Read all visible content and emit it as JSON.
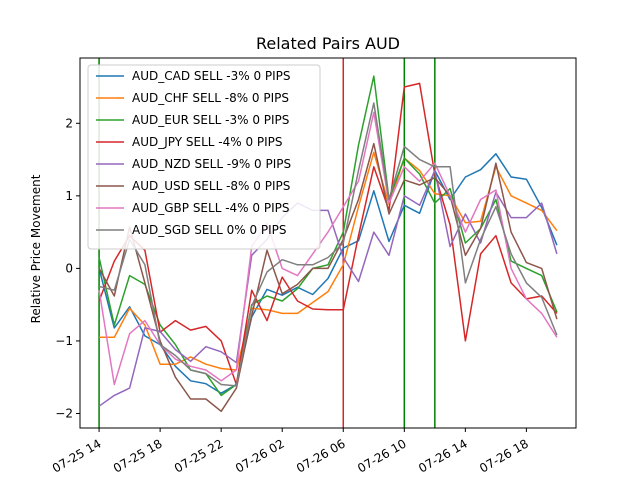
{
  "chart_data": {
    "type": "line",
    "title": "Related Pairs AUD",
    "xlabel": "",
    "ylabel": "Relative Price Movement",
    "x": [
      "2023-07-25 14:00",
      "2023-07-25 15:00",
      "2023-07-25 16:00",
      "2023-07-25 17:00",
      "2023-07-25 18:00",
      "2023-07-25 19:00",
      "2023-07-25 20:00",
      "2023-07-25 21:00",
      "2023-07-25 22:00",
      "2023-07-25 23:00",
      "2023-07-26 00:00",
      "2023-07-26 01:00",
      "2023-07-26 02:00",
      "2023-07-26 03:00",
      "2023-07-26 04:00",
      "2023-07-26 05:00",
      "2023-07-26 06:00",
      "2023-07-26 07:00",
      "2023-07-26 08:00",
      "2023-07-26 09:00",
      "2023-07-26 10:00",
      "2023-07-26 11:00",
      "2023-07-26 12:00",
      "2023-07-26 13:00",
      "2023-07-26 14:00",
      "2023-07-26 15:00",
      "2023-07-26 16:00",
      "2023-07-26 17:00",
      "2023-07-26 18:00",
      "2023-07-26 19:00",
      "2023-07-26 20:00"
    ],
    "xlim": [
      "2023-07-25 12:45",
      "2023-07-26 21:15"
    ],
    "ylim": [
      -2.2,
      2.9
    ],
    "xticks": [
      {
        "label": "07-25 14",
        "t": "2023-07-25 14:00"
      },
      {
        "label": "07-25 18",
        "t": "2023-07-25 18:00"
      },
      {
        "label": "07-25 22",
        "t": "2023-07-25 22:00"
      },
      {
        "label": "07-26 02",
        "t": "2023-07-26 02:00"
      },
      {
        "label": "07-26 06",
        "t": "2023-07-26 06:00"
      },
      {
        "label": "07-26 10",
        "t": "2023-07-26 10:00"
      },
      {
        "label": "07-26 14",
        "t": "2023-07-26 14:00"
      },
      {
        "label": "07-26 18",
        "t": "2023-07-26 18:00"
      }
    ],
    "yticks": [
      -2,
      -1,
      0,
      1,
      2
    ],
    "grid": false,
    "legend_position": "top-left",
    "vlines": [
      {
        "t": "2023-07-25 14:00",
        "color": "#008000"
      },
      {
        "t": "2023-07-26 06:00",
        "color": "#d62728"
      },
      {
        "t": "2023-07-26 10:00",
        "color": "#008000"
      },
      {
        "t": "2023-07-26 12:00",
        "color": "#008000"
      }
    ],
    "series": [
      {
        "name": "AUD_CAD SELL -3% 0 PIPS",
        "color": "#1f77b4",
        "values": [
          0.0,
          -0.82,
          -0.53,
          -0.93,
          -1.05,
          -1.35,
          -1.55,
          -1.59,
          -1.72,
          -1.6,
          -0.67,
          -0.29,
          -0.37,
          -0.26,
          -0.36,
          -0.14,
          0.28,
          0.38,
          1.07,
          0.37,
          0.87,
          0.76,
          1.35,
          0.95,
          1.26,
          1.36,
          1.58,
          1.26,
          1.23,
          0.84,
          0.32
        ]
      },
      {
        "name": "AUD_CHF SELL -8% 0 PIPS",
        "color": "#ff7f0e",
        "values": [
          -0.95,
          -0.95,
          -0.55,
          -0.78,
          -1.32,
          -1.32,
          -1.22,
          -1.32,
          -1.38,
          -1.4,
          -0.55,
          -0.57,
          -0.62,
          -0.62,
          -0.47,
          -0.32,
          0.05,
          0.85,
          1.6,
          0.88,
          1.52,
          1.35,
          1.03,
          1.0,
          0.63,
          0.65,
          1.4,
          1.0,
          0.9,
          0.8,
          0.52
        ]
      },
      {
        "name": "AUD_EUR SELL -3% 0 PIPS",
        "color": "#2ca02c",
        "values": [
          0.15,
          -0.78,
          -0.1,
          -0.22,
          -0.78,
          -1.05,
          -1.4,
          -1.45,
          -1.75,
          -1.6,
          -0.5,
          -0.38,
          -0.45,
          -0.28,
          0.0,
          0.05,
          0.5,
          1.7,
          2.65,
          0.95,
          1.52,
          1.3,
          0.9,
          1.1,
          0.35,
          0.55,
          0.95,
          0.1,
          0.0,
          -0.1,
          -0.6
        ]
      },
      {
        "name": "AUD_JPY SELL -4% 0 PIPS",
        "color": "#d62728",
        "values": [
          -0.45,
          0.1,
          0.45,
          0.25,
          -0.88,
          -0.72,
          -0.85,
          -0.8,
          -1.0,
          -1.6,
          -0.3,
          -0.72,
          -0.12,
          -0.45,
          -0.56,
          -0.57,
          -0.57,
          0.45,
          1.4,
          0.8,
          2.5,
          2.55,
          1.3,
          0.6,
          -1.0,
          0.2,
          0.45,
          -0.2,
          -0.42,
          -0.38,
          -0.62
        ]
      },
      {
        "name": "AUD_NZD SELL -9% 0 PIPS",
        "color": "#9467bd",
        "values": [
          -1.9,
          -1.75,
          -1.65,
          -0.82,
          -0.87,
          -1.12,
          -1.28,
          -1.08,
          -1.15,
          -1.3,
          0.18,
          0.4,
          0.7,
          0.9,
          0.8,
          0.8,
          0.15,
          -0.18,
          0.5,
          0.18,
          1.0,
          0.87,
          1.35,
          0.3,
          0.75,
          0.35,
          1.05,
          0.7,
          0.7,
          0.9,
          0.2
        ]
      },
      {
        "name": "AUD_USD SELL -8% 0 PIPS",
        "color": "#8c564b",
        "values": [
          0.0,
          -0.38,
          0.57,
          -0.2,
          -1.0,
          -1.5,
          -1.8,
          -1.8,
          -1.97,
          -1.65,
          -0.65,
          0.25,
          -0.35,
          -0.22,
          0.0,
          0.0,
          0.4,
          0.95,
          1.72,
          0.75,
          1.22,
          1.15,
          1.25,
          1.0,
          0.18,
          0.55,
          1.45,
          0.5,
          0.08,
          0.0,
          -0.7
        ]
      },
      {
        "name": "AUD_GBP SELL -4% 0 PIPS",
        "color": "#e377c2",
        "values": [
          -0.3,
          -1.6,
          -0.9,
          -0.72,
          -1.05,
          -1.25,
          -1.35,
          -1.4,
          -1.55,
          -1.4,
          0.3,
          0.62,
          0.0,
          -0.1,
          0.2,
          0.5,
          0.85,
          1.2,
          2.15,
          0.9,
          1.4,
          1.2,
          1.45,
          1.0,
          0.5,
          0.95,
          1.08,
          0.0,
          -0.42,
          -0.62,
          -0.95
        ]
      },
      {
        "name": "AUD_SGD SELL 0% 0 PIPS",
        "color": "#7f7f7f",
        "values": [
          -0.25,
          -0.3,
          0.4,
          0.05,
          -1.05,
          -1.2,
          -1.4,
          -1.45,
          -1.6,
          -1.62,
          -0.52,
          -0.05,
          0.12,
          0.05,
          0.05,
          0.15,
          0.35,
          1.35,
          2.28,
          0.95,
          1.68,
          1.5,
          1.4,
          1.4,
          -0.2,
          0.4,
          0.85,
          0.2,
          -0.2,
          -0.4,
          -0.92
        ]
      }
    ]
  }
}
